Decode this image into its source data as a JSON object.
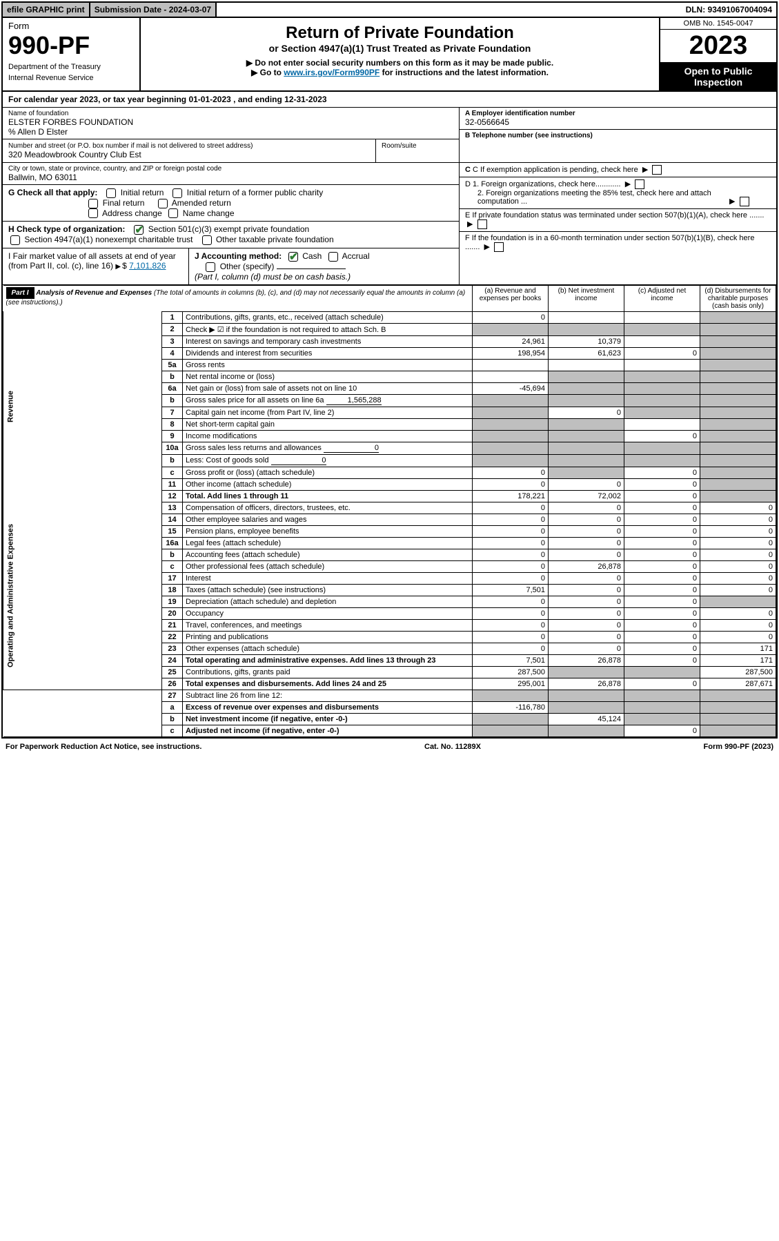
{
  "topbar": {
    "efile": "efile GRAPHIC print",
    "subdate_lbl": "Submission Date - 2024-03-07",
    "dln": "DLN: 93491067004094"
  },
  "header": {
    "form_lbl": "Form",
    "form_num": "990-PF",
    "dept": "Department of the Treasury",
    "irs": "Internal Revenue Service",
    "title": "Return of Private Foundation",
    "subtitle": "or Section 4947(a)(1) Trust Treated as Private Foundation",
    "note1": "▶ Do not enter social security numbers on this form as it may be made public.",
    "note2_pre": "▶ Go to ",
    "note2_link": "www.irs.gov/Form990PF",
    "note2_post": " for instructions and the latest information.",
    "omb": "OMB No. 1545-0047",
    "year": "2023",
    "open": "Open to Public Inspection"
  },
  "calyear": "For calendar year 2023, or tax year beginning 01-01-2023         , and ending 12-31-2023",
  "foundation": {
    "name_lbl": "Name of foundation",
    "name": "ELSTER FORBES FOUNDATION",
    "care_of": "% Allen D Elster",
    "addr_lbl": "Number and street (or P.O. box number if mail is not delivered to street address)",
    "addr": "320 Meadowbrook Country Club Est",
    "room_lbl": "Room/suite",
    "city_lbl": "City or town, state or province, country, and ZIP or foreign postal code",
    "city": "Ballwin, MO  63011",
    "ein_lbl": "A Employer identification number",
    "ein": "32-0566645",
    "phone_lbl": "B Telephone number (see instructions)",
    "c_lbl": "C If exemption application is pending, check here",
    "d1": "D 1. Foreign organizations, check here............",
    "d2": "2. Foreign organizations meeting the 85% test, check here and attach computation ...",
    "e_lbl": "E  If private foundation status was terminated under section 507(b)(1)(A), check here .......",
    "f_lbl": "F  If the foundation is in a 60-month termination under section 507(b)(1)(B), check here .......",
    "g_lbl": "G Check all that apply:",
    "g_opts": [
      "Initial return",
      "Initial return of a former public charity",
      "Final return",
      "Amended return",
      "Address change",
      "Name change"
    ],
    "h_lbl": "H Check type of organization:",
    "h1": "Section 501(c)(3) exempt private foundation",
    "h2": "Section 4947(a)(1) nonexempt charitable trust",
    "h3": "Other taxable private foundation",
    "i_lbl": "I Fair market value of all assets at end of year (from Part II, col. (c), line 16)",
    "i_val": "7,101,826",
    "j_lbl": "J Accounting method:",
    "j_cash": "Cash",
    "j_accrual": "Accrual",
    "j_other": "Other (specify)",
    "j_note": "(Part I, column (d) must be on cash basis.)"
  },
  "part1": {
    "label": "Part I",
    "title": "Analysis of Revenue and Expenses",
    "desc": "(The total of amounts in columns (b), (c), and (d) may not necessarily equal the amounts in column (a) (see instructions).)",
    "col_a": "(a)   Revenue and expenses per books",
    "col_b": "(b)   Net investment income",
    "col_c": "(c)   Adjusted net income",
    "col_d": "(d)   Disbursements for charitable purposes (cash basis only)"
  },
  "sections": {
    "revenue": "Revenue",
    "expenses": "Operating and Administrative Expenses"
  },
  "rows": [
    {
      "n": "1",
      "d": "Contributions, gifts, grants, etc., received (attach schedule)",
      "a": "0",
      "b": "",
      "c": "",
      "dd": "",
      "grey_d": true
    },
    {
      "n": "2",
      "d": "Check ▶ ☑ if the foundation is not required to attach Sch. B",
      "a": "",
      "b": "",
      "c": "",
      "dd": "",
      "grey_all": true,
      "bold_not": true
    },
    {
      "n": "3",
      "d": "Interest on savings and temporary cash investments",
      "a": "24,961",
      "b": "10,379",
      "c": "",
      "dd": "",
      "grey_d": true
    },
    {
      "n": "4",
      "d": "Dividends and interest from securities",
      "a": "198,954",
      "b": "61,623",
      "c": "0",
      "dd": "",
      "grey_d": true
    },
    {
      "n": "5a",
      "d": "Gross rents",
      "a": "",
      "b": "",
      "c": "",
      "dd": "",
      "grey_d": true
    },
    {
      "n": "b",
      "d": "Net rental income or (loss)",
      "a": "",
      "b": "",
      "c": "",
      "dd": "",
      "grey_bcd": true,
      "inline_box": true
    },
    {
      "n": "6a",
      "d": "Net gain or (loss) from sale of assets not on line 10",
      "a": "-45,694",
      "b": "",
      "c": "",
      "dd": "",
      "grey_bcd": true
    },
    {
      "n": "b",
      "d": "Gross sales price for all assets on line 6a",
      "a": "",
      "b": "",
      "c": "",
      "dd": "",
      "inline_val": "1,565,288",
      "grey_all": true
    },
    {
      "n": "7",
      "d": "Capital gain net income (from Part IV, line 2)",
      "a": "",
      "b": "0",
      "c": "",
      "dd": "",
      "grey_a": true,
      "grey_cd": true
    },
    {
      "n": "8",
      "d": "Net short-term capital gain",
      "a": "",
      "b": "",
      "c": "",
      "dd": "",
      "grey_ab": true,
      "grey_d": true
    },
    {
      "n": "9",
      "d": "Income modifications",
      "a": "",
      "b": "",
      "c": "0",
      "dd": "",
      "grey_ab": true,
      "grey_d": true
    },
    {
      "n": "10a",
      "d": "Gross sales less returns and allowances",
      "a": "",
      "b": "",
      "c": "",
      "dd": "",
      "inline_val": "0",
      "grey_all": true
    },
    {
      "n": "b",
      "d": "Less: Cost of goods sold",
      "a": "",
      "b": "",
      "c": "",
      "dd": "",
      "inline_val": "0",
      "grey_all": true
    },
    {
      "n": "c",
      "d": "Gross profit or (loss) (attach schedule)",
      "a": "0",
      "b": "",
      "c": "0",
      "dd": "",
      "grey_b": true,
      "grey_d": true
    },
    {
      "n": "11",
      "d": "Other income (attach schedule)",
      "a": "0",
      "b": "0",
      "c": "0",
      "dd": "",
      "grey_d": true
    },
    {
      "n": "12",
      "d": "Total. Add lines 1 through 11",
      "a": "178,221",
      "b": "72,002",
      "c": "0",
      "dd": "",
      "bold": true,
      "grey_d": true
    }
  ],
  "exp_rows": [
    {
      "n": "13",
      "d": "Compensation of officers, directors, trustees, etc.",
      "a": "0",
      "b": "0",
      "c": "0",
      "dd": "0"
    },
    {
      "n": "14",
      "d": "Other employee salaries and wages",
      "a": "0",
      "b": "0",
      "c": "0",
      "dd": "0"
    },
    {
      "n": "15",
      "d": "Pension plans, employee benefits",
      "a": "0",
      "b": "0",
      "c": "0",
      "dd": "0"
    },
    {
      "n": "16a",
      "d": "Legal fees (attach schedule)",
      "a": "0",
      "b": "0",
      "c": "0",
      "dd": "0"
    },
    {
      "n": "b",
      "d": "Accounting fees (attach schedule)",
      "a": "0",
      "b": "0",
      "c": "0",
      "dd": "0"
    },
    {
      "n": "c",
      "d": "Other professional fees (attach schedule)",
      "a": "0",
      "b": "26,878",
      "c": "0",
      "dd": "0"
    },
    {
      "n": "17",
      "d": "Interest",
      "a": "0",
      "b": "0",
      "c": "0",
      "dd": "0"
    },
    {
      "n": "18",
      "d": "Taxes (attach schedule) (see instructions)",
      "a": "7,501",
      "b": "0",
      "c": "0",
      "dd": "0"
    },
    {
      "n": "19",
      "d": "Depreciation (attach schedule) and depletion",
      "a": "0",
      "b": "0",
      "c": "0",
      "dd": "",
      "grey_d": true
    },
    {
      "n": "20",
      "d": "Occupancy",
      "a": "0",
      "b": "0",
      "c": "0",
      "dd": "0"
    },
    {
      "n": "21",
      "d": "Travel, conferences, and meetings",
      "a": "0",
      "b": "0",
      "c": "0",
      "dd": "0"
    },
    {
      "n": "22",
      "d": "Printing and publications",
      "a": "0",
      "b": "0",
      "c": "0",
      "dd": "0"
    },
    {
      "n": "23",
      "d": "Other expenses (attach schedule)",
      "a": "0",
      "b": "0",
      "c": "0",
      "dd": "171"
    },
    {
      "n": "24",
      "d": "Total operating and administrative expenses. Add lines 13 through 23",
      "a": "7,501",
      "b": "26,878",
      "c": "0",
      "dd": "171",
      "bold": true
    },
    {
      "n": "25",
      "d": "Contributions, gifts, grants paid",
      "a": "287,500",
      "b": "",
      "c": "",
      "dd": "287,500",
      "grey_bc": true
    },
    {
      "n": "26",
      "d": "Total expenses and disbursements. Add lines 24 and 25",
      "a": "295,001",
      "b": "26,878",
      "c": "0",
      "dd": "287,671",
      "bold": true
    }
  ],
  "bottom_rows": [
    {
      "n": "27",
      "d": "Subtract line 26 from line 12:",
      "a": "",
      "b": "",
      "c": "",
      "dd": "",
      "grey_all": true
    },
    {
      "n": "a",
      "d": "Excess of revenue over expenses and disbursements",
      "a": "-116,780",
      "b": "",
      "c": "",
      "dd": "",
      "bold": true,
      "grey_bcd": true
    },
    {
      "n": "b",
      "d": "Net investment income (if negative, enter -0-)",
      "a": "",
      "b": "45,124",
      "c": "",
      "dd": "",
      "bold": true,
      "grey_a": true,
      "grey_cd": true
    },
    {
      "n": "c",
      "d": "Adjusted net income (if negative, enter -0-)",
      "a": "",
      "b": "",
      "c": "0",
      "dd": "",
      "bold": true,
      "grey_ab": true,
      "grey_d": true
    }
  ],
  "footer": {
    "left": "For Paperwork Reduction Act Notice, see instructions.",
    "mid": "Cat. No. 11289X",
    "right": "Form 990-PF (2023)"
  }
}
